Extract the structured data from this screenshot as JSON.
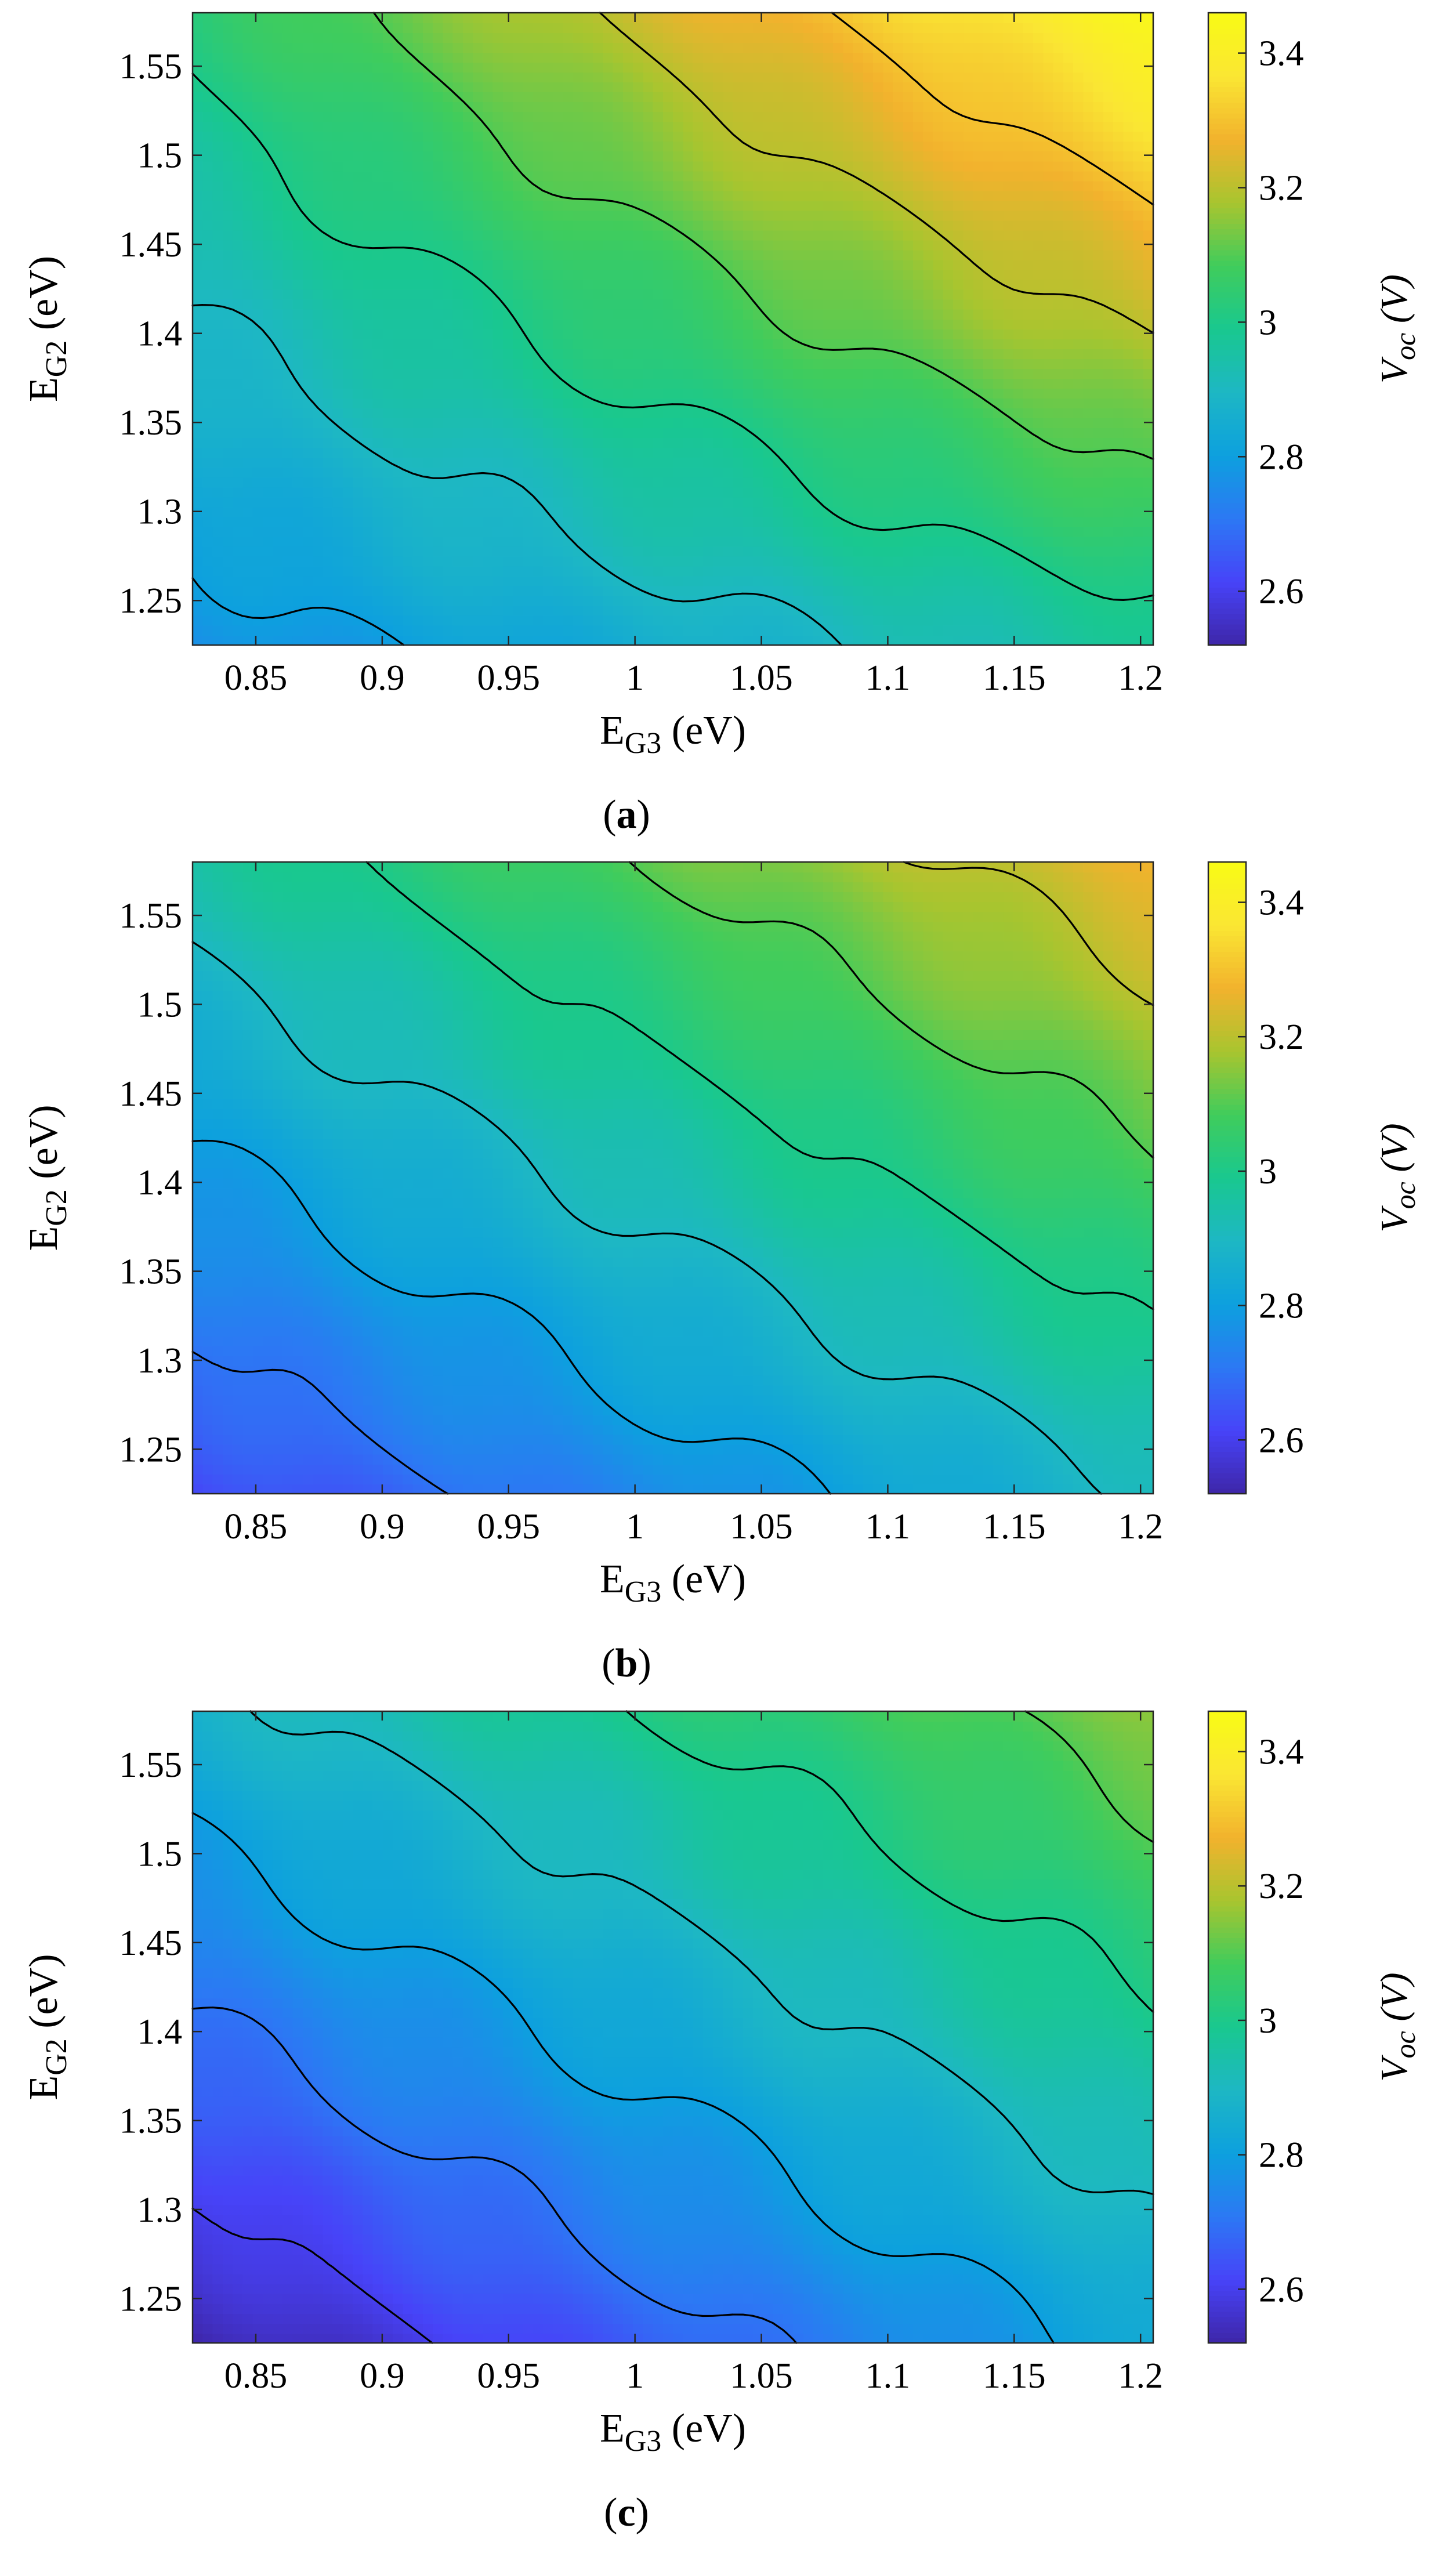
{
  "colors": {
    "colormap": [
      "#3e26a8",
      "#4743f8",
      "#2c78f4",
      "#0da0de",
      "#1db7c4",
      "#19c88f",
      "#40cc5c",
      "#a8c52f",
      "#f2b22d",
      "#fae633",
      "#f9fb15"
    ],
    "contour_line": "#000000"
  },
  "chart_data": [
    {
      "type": "contour",
      "panel_label": "a",
      "xlabel": {
        "main": "E",
        "sub": "G3",
        "unit": " (eV)"
      },
      "ylabel": {
        "main": "E",
        "sub": "G2",
        "unit": " (eV)"
      },
      "colorbar_label": {
        "main": "V",
        "sub": "oc",
        "unit": " (V)"
      },
      "xlim": [
        0.825,
        1.205
      ],
      "ylim": [
        1.225,
        1.58
      ],
      "xticks": [
        0.85,
        0.9,
        0.95,
        1,
        1.05,
        1.1,
        1.15,
        1.2
      ],
      "xtick_labels": [
        "0.85",
        "0.9",
        "0.95",
        "1",
        "1.05",
        "1.1",
        "1.15",
        "1.2"
      ],
      "yticks": [
        1.25,
        1.3,
        1.35,
        1.4,
        1.45,
        1.5,
        1.55
      ],
      "ytick_labels": [
        "1.25",
        "1.3",
        "1.35",
        "1.4",
        "1.45",
        "1.5",
        "1.55"
      ],
      "colorbar_ticks": [
        2.6,
        2.8,
        3,
        3.2,
        3.4
      ],
      "colorbar_tick_labels": [
        "2.6",
        "2.8",
        "3",
        "3.2",
        "3.4"
      ],
      "clim": [
        2.52,
        3.46
      ],
      "contour_levels": [
        2.7,
        2.8,
        2.9,
        3.0,
        3.1,
        3.2,
        3.3
      ],
      "corner_values": {
        "x0y0": 2.76,
        "x1y0": 2.97,
        "x0y1": 3.03,
        "x1y1": 3.44
      }
    },
    {
      "type": "contour",
      "panel_label": "b",
      "xlabel": {
        "main": "E",
        "sub": "G3",
        "unit": " (eV)"
      },
      "ylabel": {
        "main": "E",
        "sub": "G2",
        "unit": " (eV)"
      },
      "colorbar_label": {
        "main": "V",
        "sub": "oc",
        "unit": " (V)"
      },
      "xlim": [
        0.825,
        1.205
      ],
      "ylim": [
        1.225,
        1.58
      ],
      "xticks": [
        0.85,
        0.9,
        0.95,
        1,
        1.05,
        1.1,
        1.15,
        1.2
      ],
      "xtick_labels": [
        "0.85",
        "0.9",
        "0.95",
        "1",
        "1.05",
        "1.1",
        "1.15",
        "1.2"
      ],
      "yticks": [
        1.25,
        1.3,
        1.35,
        1.4,
        1.45,
        1.5,
        1.55
      ],
      "ytick_labels": [
        "1.25",
        "1.3",
        "1.35",
        "1.4",
        "1.45",
        "1.5",
        "1.55"
      ],
      "colorbar_ticks": [
        2.6,
        2.8,
        3,
        3.2,
        3.4
      ],
      "colorbar_tick_labels": [
        "2.6",
        "2.8",
        "3",
        "3.2",
        "3.4"
      ],
      "clim": [
        2.52,
        3.46
      ],
      "contour_levels": [
        2.6,
        2.7,
        2.8,
        2.9,
        3.0,
        3.1,
        3.2
      ],
      "corner_values": {
        "x0y0": 2.62,
        "x1y0": 2.9,
        "x0y1": 2.95,
        "x1y1": 3.27
      }
    },
    {
      "type": "contour",
      "panel_label": "c",
      "xlabel": {
        "main": "E",
        "sub": "G3",
        "unit": " (eV)"
      },
      "ylabel": {
        "main": "E",
        "sub": "G2",
        "unit": " (eV)"
      },
      "colorbar_label": {
        "main": "V",
        "sub": "oc",
        "unit": " (V)"
      },
      "xlim": [
        0.825,
        1.205
      ],
      "ylim": [
        1.225,
        1.58
      ],
      "xticks": [
        0.85,
        0.9,
        0.95,
        1,
        1.05,
        1.1,
        1.15,
        1.2
      ],
      "xtick_labels": [
        "0.85",
        "0.9",
        "0.95",
        "1",
        "1.05",
        "1.1",
        "1.15",
        "1.2"
      ],
      "yticks": [
        1.25,
        1.3,
        1.35,
        1.4,
        1.45,
        1.5,
        1.55
      ],
      "ytick_labels": [
        "1.25",
        "1.3",
        "1.35",
        "1.4",
        "1.45",
        "1.5",
        "1.55"
      ],
      "colorbar_ticks": [
        2.6,
        2.8,
        3,
        3.2,
        3.4
      ],
      "colorbar_tick_labels": [
        "2.6",
        "2.8",
        "3",
        "3.2",
        "3.4"
      ],
      "clim": [
        2.52,
        3.46
      ],
      "contour_levels": [
        2.6,
        2.7,
        2.8,
        2.9,
        3.0,
        3.1
      ],
      "corner_values": {
        "x0y0": 2.52,
        "x1y0": 2.83,
        "x0y1": 2.87,
        "x1y1": 3.15
      }
    }
  ]
}
